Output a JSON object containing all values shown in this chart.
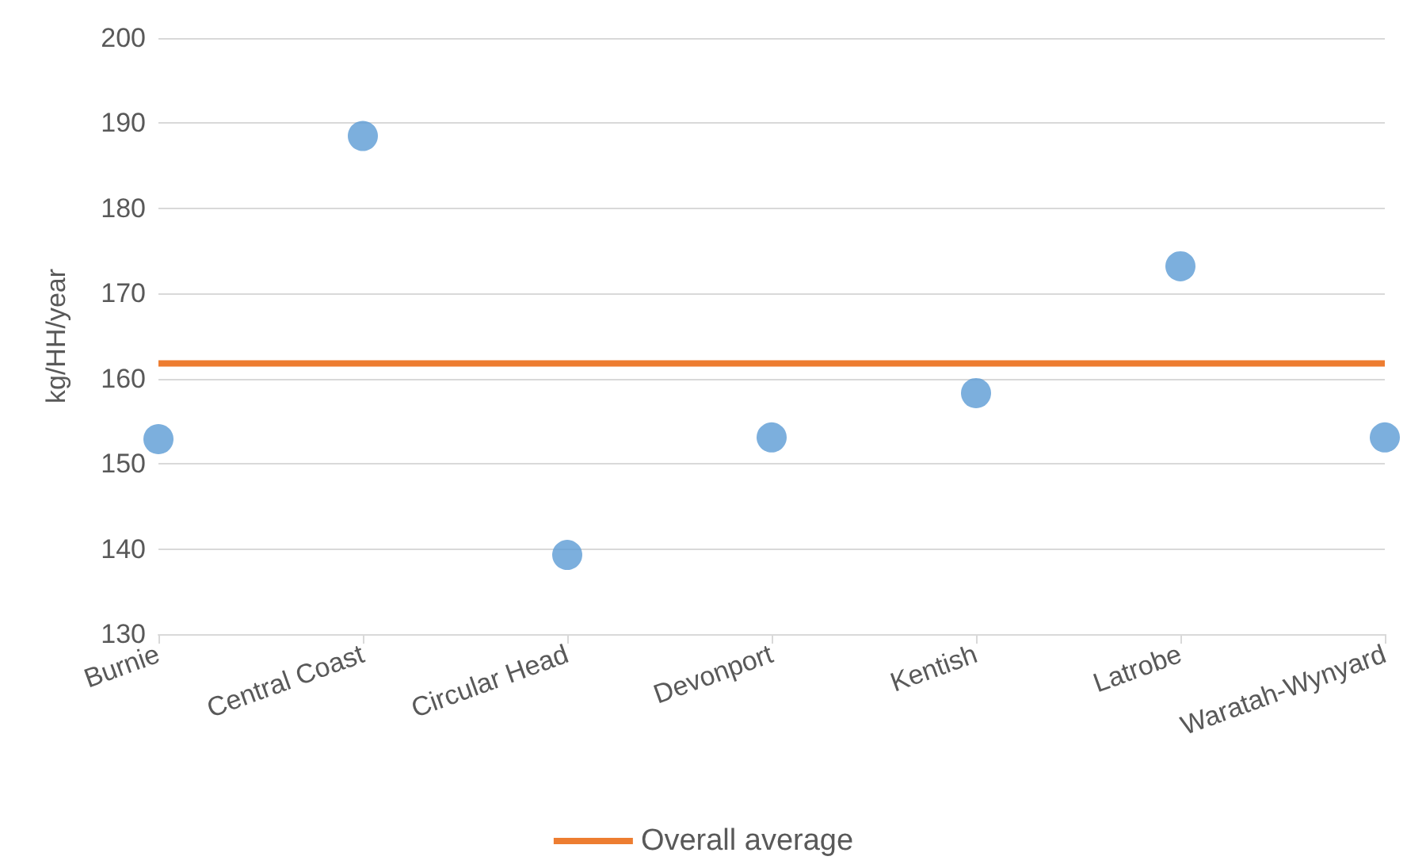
{
  "chart_data": {
    "type": "scatter",
    "ylabel": "kg/HH/year",
    "categories": [
      "Burnie",
      "Central Coast",
      "Circular Head",
      "Devonport",
      "Kentish",
      "Latrobe",
      "Waratah-Wynyard"
    ],
    "series": [
      {
        "type": "scatter",
        "color": "#5b9bd5",
        "marker": "circle",
        "values": [
          152.9,
          188.5,
          139.3,
          153.1,
          158.3,
          173.2,
          153.1
        ]
      },
      {
        "type": "line",
        "name": "Overall average",
        "color": "#ed7d31",
        "marker": "none",
        "line_style": "solid",
        "values": [
          161.8,
          161.8,
          161.8,
          161.8,
          161.8,
          161.8,
          161.8
        ]
      }
    ],
    "ylim": [
      130,
      200
    ],
    "yticks": [
      130,
      140,
      150,
      160,
      170,
      180,
      190,
      200
    ],
    "grid": "y",
    "legend": "bottom"
  }
}
